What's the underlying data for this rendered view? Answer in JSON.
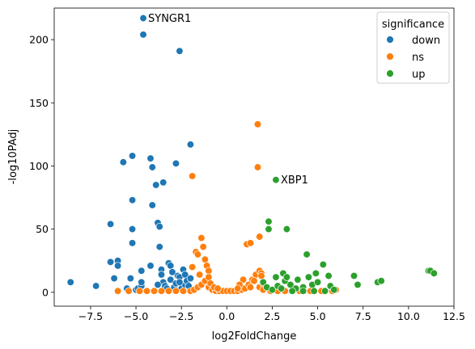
{
  "chart_data": {
    "type": "scatter",
    "title": "",
    "xlabel": "log2FoldChange",
    "ylabel": "-log10PAdj",
    "xlim": [
      -9.5,
      12.5
    ],
    "ylim": [
      -11,
      225
    ],
    "xticks": [
      -7.5,
      -5.0,
      -2.5,
      0.0,
      2.5,
      5.0,
      7.5,
      10.0,
      12.5
    ],
    "xtick_labels": [
      "−7.5",
      "−5.0",
      "−2.5",
      "0.0",
      "2.5",
      "5.0",
      "7.5",
      "10.0",
      "12.5"
    ],
    "yticks": [
      0,
      50,
      100,
      150,
      200
    ],
    "ytick_labels": [
      "0",
      "50",
      "100",
      "150",
      "200"
    ],
    "grid": false,
    "legend": {
      "title": "significance",
      "placement": "top-right"
    },
    "annotations": [
      {
        "text": "SYNGR1",
        "x": -4.6,
        "y": 217
      },
      {
        "text": "XBP1",
        "x": 2.7,
        "y": 89
      }
    ],
    "series": [
      {
        "name": "down",
        "color": "#1f77b4",
        "points": [
          [
            -8.6,
            8
          ],
          [
            -7.2,
            5
          ],
          [
            -6.4,
            54
          ],
          [
            -6.4,
            24
          ],
          [
            -6.0,
            25
          ],
          [
            -6.0,
            21
          ],
          [
            -6.2,
            11
          ],
          [
            -5.7,
            103
          ],
          [
            -5.2,
            108
          ],
          [
            -5.2,
            73
          ],
          [
            -5.2,
            50
          ],
          [
            -5.2,
            39
          ],
          [
            -5.5,
            3
          ],
          [
            -5.3,
            11
          ],
          [
            -5.0,
            2
          ],
          [
            -4.9,
            3
          ],
          [
            -4.7,
            5
          ],
          [
            -4.7,
            8
          ],
          [
            -4.7,
            17
          ],
          [
            -4.6,
            217
          ],
          [
            -4.6,
            204
          ],
          [
            -4.2,
            106
          ],
          [
            -4.1,
            99
          ],
          [
            -4.1,
            69
          ],
          [
            -4.2,
            21
          ],
          [
            -3.9,
            85
          ],
          [
            -3.8,
            55
          ],
          [
            -3.7,
            52
          ],
          [
            -3.7,
            36
          ],
          [
            -3.6,
            18
          ],
          [
            -3.6,
            14
          ],
          [
            -3.5,
            87
          ],
          [
            -3.5,
            8
          ],
          [
            -3.4,
            5
          ],
          [
            -3.3,
            3
          ],
          [
            -3.2,
            23
          ],
          [
            -3.1,
            21
          ],
          [
            -3.1,
            10
          ],
          [
            -2.9,
            4
          ],
          [
            -2.8,
            102
          ],
          [
            -2.8,
            7
          ],
          [
            -2.7,
            13
          ],
          [
            -2.6,
            191
          ],
          [
            -2.6,
            12
          ],
          [
            -2.5,
            3
          ],
          [
            -2.4,
            18
          ],
          [
            -2.3,
            14
          ],
          [
            -2.3,
            6
          ],
          [
            -2.2,
            9
          ],
          [
            -2.1,
            5
          ],
          [
            -2.0,
            117
          ],
          [
            -2.0,
            11
          ],
          [
            -3.8,
            6
          ],
          [
            -3.0,
            16
          ],
          [
            -2.6,
            8
          ]
        ]
      },
      {
        "name": "ns",
        "color": "#ff7f0e",
        "points": [
          [
            -6.0,
            1
          ],
          [
            -5.4,
            1
          ],
          [
            -4.8,
            1
          ],
          [
            -4.4,
            1
          ],
          [
            -4.0,
            1
          ],
          [
            -3.6,
            1
          ],
          [
            -3.2,
            1
          ],
          [
            -2.8,
            1
          ],
          [
            -2.4,
            1
          ],
          [
            -2.0,
            1
          ],
          [
            -1.8,
            2
          ],
          [
            -1.6,
            4
          ],
          [
            -1.4,
            6
          ],
          [
            -1.2,
            9
          ],
          [
            -1.0,
            4
          ],
          [
            -0.8,
            2
          ],
          [
            -0.6,
            1
          ],
          [
            -0.4,
            1
          ],
          [
            -0.2,
            1
          ],
          [
            0.0,
            1
          ],
          [
            0.2,
            1
          ],
          [
            0.4,
            1
          ],
          [
            0.6,
            1
          ],
          [
            0.8,
            2
          ],
          [
            1.0,
            3
          ],
          [
            1.2,
            6
          ],
          [
            1.4,
            10
          ],
          [
            1.6,
            14
          ],
          [
            1.8,
            4
          ],
          [
            2.0,
            2
          ],
          [
            2.4,
            1
          ],
          [
            2.8,
            1
          ],
          [
            3.2,
            1
          ],
          [
            3.6,
            1
          ],
          [
            4.0,
            1
          ],
          [
            4.6,
            1
          ],
          [
            5.2,
            1
          ],
          [
            5.8,
            1
          ],
          [
            6.0,
            2
          ],
          [
            -1.9,
            92
          ],
          [
            -1.9,
            20
          ],
          [
            -1.7,
            32
          ],
          [
            -1.6,
            30
          ],
          [
            -1.4,
            43
          ],
          [
            -1.3,
            36
          ],
          [
            -1.2,
            26
          ],
          [
            -1.1,
            21
          ],
          [
            -1.0,
            17
          ],
          [
            -1.0,
            12
          ],
          [
            -0.9,
            7
          ],
          [
            -0.7,
            4
          ],
          [
            -0.5,
            3
          ],
          [
            -1.5,
            14
          ],
          [
            1.1,
            38
          ],
          [
            1.3,
            39
          ],
          [
            1.7,
            133
          ],
          [
            1.7,
            99
          ],
          [
            1.8,
            44
          ],
          [
            1.8,
            17
          ],
          [
            1.9,
            15
          ],
          [
            1.9,
            13
          ],
          [
            1.5,
            9
          ],
          [
            1.3,
            4
          ],
          [
            0.9,
            10
          ],
          [
            0.7,
            6
          ],
          [
            0.6,
            3
          ],
          [
            2.0,
            7
          ]
        ]
      },
      {
        "name": "up",
        "color": "#2ca02c",
        "points": [
          [
            2.7,
            89
          ],
          [
            3.3,
            50
          ],
          [
            2.3,
            56
          ],
          [
            2.3,
            50
          ],
          [
            2.0,
            8
          ],
          [
            2.2,
            4
          ],
          [
            2.5,
            2
          ],
          [
            2.7,
            12
          ],
          [
            2.8,
            5
          ],
          [
            3.0,
            3
          ],
          [
            3.1,
            15
          ],
          [
            3.2,
            9
          ],
          [
            3.3,
            12
          ],
          [
            3.5,
            6
          ],
          [
            3.8,
            3
          ],
          [
            3.9,
            10
          ],
          [
            4.2,
            4
          ],
          [
            4.4,
            30
          ],
          [
            4.5,
            12
          ],
          [
            4.7,
            6
          ],
          [
            4.9,
            15
          ],
          [
            5.0,
            8
          ],
          [
            5.3,
            22
          ],
          [
            5.6,
            13
          ],
          [
            5.7,
            5
          ],
          [
            5.9,
            2
          ],
          [
            7.0,
            13
          ],
          [
            7.2,
            6
          ],
          [
            8.3,
            8
          ],
          [
            8.5,
            9
          ],
          [
            11.1,
            17
          ],
          [
            11.2,
            17
          ],
          [
            11.4,
            15
          ],
          [
            3.6,
            1
          ],
          [
            4.2,
            1
          ],
          [
            4.8,
            1
          ],
          [
            5.4,
            1
          ]
        ]
      }
    ]
  }
}
